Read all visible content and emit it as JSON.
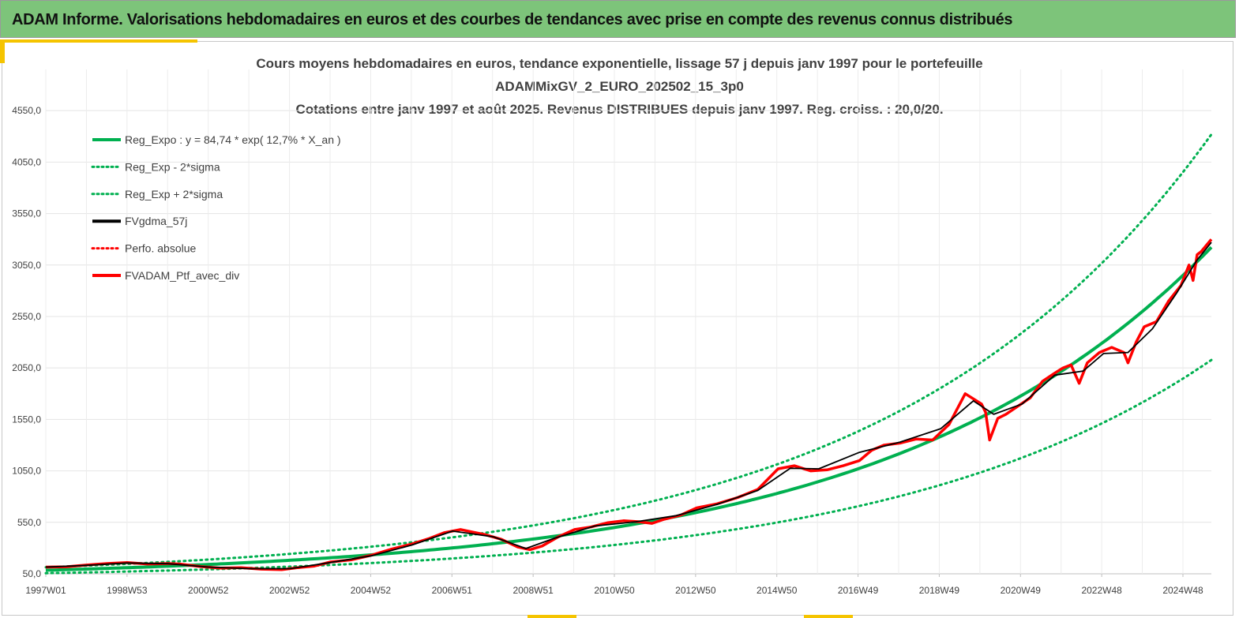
{
  "header": {
    "title": "ADAM Informe. Valorisations hebdomadaires en euros et des courbes de tendances avec prise en compte des revenus connus distribués"
  },
  "colors": {
    "banner": "#7dc47a",
    "accent": "#f5c400",
    "trend": "#00b050",
    "smooth": "#000000",
    "portfolio": "#ff0000"
  },
  "chart_data": {
    "type": "line",
    "title_lines": [
      "Cours moyens hebdomadaires  en euros, tendance exponentielle, lissage 57 j depuis janv 1997 pour le portefeuille",
      "ADAMMixGV_2_EURO_202502_15_3p0",
      "Cotations  entre janv 1997 et août 2025. Revenus DISTRIBUES depuis janv 1997. Reg. croiss. : 20,0/20."
    ],
    "x_tick_labels": [
      "1997W01",
      "1998W53",
      "2000W52",
      "2002W52",
      "2004W52",
      "2006W51",
      "2008W51",
      "2010W50",
      "2012W50",
      "2014W50",
      "2016W49",
      "2018W49",
      "2020W49",
      "2022W48",
      "2024W48"
    ],
    "y_tick_labels": [
      "50,0",
      "550,0",
      "1050,0",
      "1550,0",
      "2050,0",
      "2550,0",
      "3050,0",
      "3550,0",
      "4050,0",
      "4550,0"
    ],
    "ylim": [
      50,
      4950
    ],
    "xlim": [
      1997.0,
      2025.65
    ],
    "grid": true,
    "legend_position": "top-left",
    "trend": {
      "a": 84.74,
      "rate": 0.127,
      "t0": 1997.0,
      "sigma_factor": 0.34
    },
    "legend": [
      {
        "label": "Reg_Expo : y = 84,74 * exp( 12,7% *  X_an )",
        "color": "#00b050",
        "style": "solid"
      },
      {
        "label": "Reg_Exp - 2*sigma",
        "color": "#00b050",
        "style": "dotted"
      },
      {
        "label": "Reg_Exp + 2*sigma",
        "color": "#00b050",
        "style": "dotted"
      },
      {
        "label": "FVgdma_57j",
        "color": "#000000",
        "style": "solid"
      },
      {
        "label": "Perfo. absolue",
        "color": "#ff0000",
        "style": "dotted"
      },
      {
        "label": "FVADAM_Ptf_avec_div",
        "color": "#ff0000",
        "style": "solid"
      }
    ],
    "series": [
      {
        "name": "FVADAM_Ptf_avec_div",
        "x": [
          1997.0,
          1997.5,
          1998.0,
          1998.5,
          1999.0,
          1999.5,
          2000.0,
          2000.3,
          2000.8,
          2001.3,
          2001.8,
          2002.3,
          2002.8,
          2003.2,
          2003.6,
          2004.0,
          2004.5,
          2005.0,
          2005.5,
          2006.0,
          2006.4,
          2006.8,
          2007.2,
          2007.5,
          2007.8,
          2008.2,
          2008.6,
          2008.9,
          2009.2,
          2009.6,
          2010.0,
          2010.4,
          2010.8,
          2011.2,
          2011.6,
          2011.9,
          2012.2,
          2012.6,
          2013.0,
          2013.5,
          2014.0,
          2014.5,
          2015.0,
          2015.4,
          2015.8,
          2016.2,
          2016.6,
          2017.0,
          2017.3,
          2017.6,
          2018.0,
          2018.4,
          2018.8,
          2019.2,
          2019.6,
          2020.0,
          2020.1,
          2020.2,
          2020.4,
          2020.6,
          2020.9,
          2021.2,
          2021.5,
          2021.8,
          2022.0,
          2022.2,
          2022.4,
          2022.6,
          2022.9,
          2023.2,
          2023.5,
          2023.6,
          2023.8,
          2024.0,
          2024.3,
          2024.6,
          2024.9,
          2025.1,
          2025.2,
          2025.3,
          2025.4,
          2025.65
        ],
        "values": [
          115,
          118,
          135,
          150,
          160,
          145,
          150,
          145,
          120,
          105,
          110,
          95,
          90,
          110,
          125,
          165,
          185,
          230,
          290,
          340,
          390,
          450,
          480,
          455,
          430,
          385,
          310,
          285,
          320,
          410,
          480,
          505,
          545,
          565,
          555,
          540,
          580,
          620,
          690,
          730,
          790,
          870,
          1070,
          1100,
          1050,
          1060,
          1100,
          1150,
          1250,
          1300,
          1320,
          1360,
          1350,
          1500,
          1800,
          1700,
          1620,
          1350,
          1560,
          1600,
          1680,
          1760,
          1920,
          2000,
          2050,
          2080,
          1900,
          2100,
          2200,
          2250,
          2200,
          2100,
          2300,
          2450,
          2500,
          2700,
          2850,
          3050,
          2900,
          3150,
          3180,
          3300
        ]
      },
      {
        "name": "FVgdma_57j",
        "x": [
          1997.0,
          1998.0,
          1999.0,
          2000.0,
          2001.0,
          2002.0,
          2003.0,
          2004.0,
          2005.0,
          2006.0,
          2007.0,
          2008.0,
          2008.8,
          2009.5,
          2010.5,
          2011.5,
          2012.5,
          2013.5,
          2014.5,
          2015.3,
          2016.0,
          2017.0,
          2018.0,
          2019.0,
          2019.8,
          2020.3,
          2021.0,
          2021.8,
          2022.5,
          2023.0,
          2023.6,
          2024.2,
          2024.8,
          2025.3,
          2025.65
        ],
        "values": [
          115,
          132,
          155,
          148,
          115,
          100,
          100,
          160,
          225,
          330,
          465,
          410,
          295,
          395,
          515,
          555,
          615,
          725,
          860,
          1075,
          1070,
          1230,
          1330,
          1460,
          1730,
          1600,
          1700,
          1980,
          2020,
          2190,
          2200,
          2430,
          2780,
          3100,
          3270
        ]
      }
    ]
  }
}
